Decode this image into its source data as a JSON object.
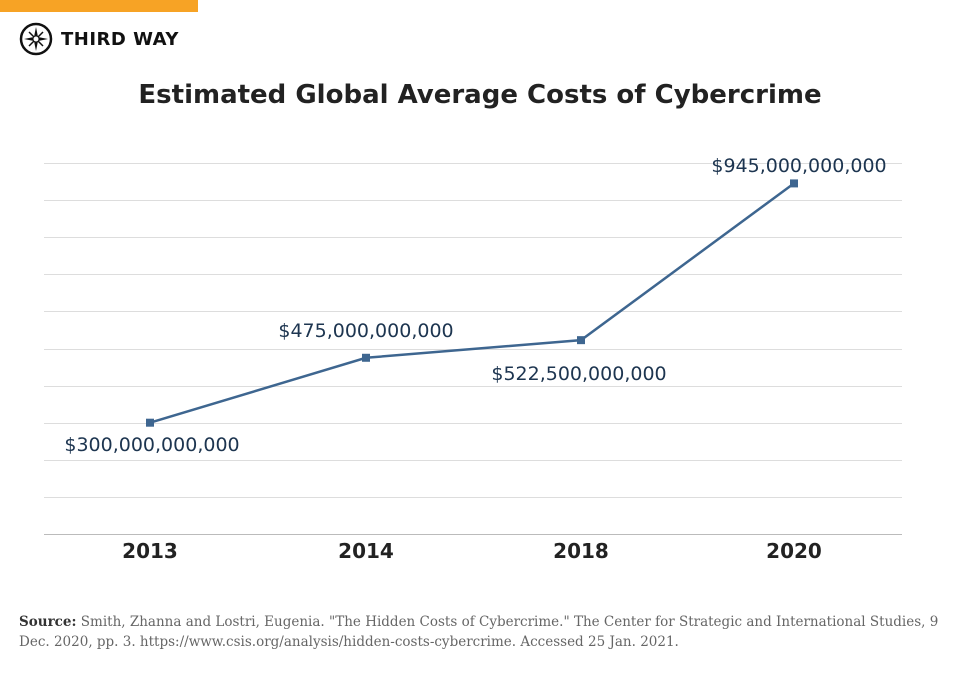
{
  "brand": {
    "name": "THIRD WAY",
    "accent_color": "#F7A325",
    "logo_icon": "compass-icon"
  },
  "chart_data": {
    "type": "line",
    "title": "Estimated Global Average Costs of Cybercrime",
    "categories": [
      "2013",
      "2014",
      "2018",
      "2020"
    ],
    "series": [
      {
        "values": [
          300000000000,
          475000000000,
          522500000000,
          945000000000
        ],
        "color": "#3E6690"
      }
    ],
    "data_labels": [
      "$300,000,000,000",
      "$475,000,000,000",
      "$522,500,000,000",
      "$945,000,000,000"
    ],
    "ylim": [
      0,
      1000000000000
    ],
    "y_grid_step": 100000000000,
    "grid": true,
    "y_tick_labels_shown": false,
    "xlabel": "",
    "ylabel": ""
  },
  "source": {
    "label": "Source:",
    "text": "Smith, Zhanna and Lostri, Eugenia. \"The Hidden Costs of Cybercrime.\" The Center for Strategic and International Studies, 9 Dec. 2020, pp. 3. https://www.csis.org/analysis/hidden-costs-cybercrime. Accessed 25 Jan. 2021."
  }
}
